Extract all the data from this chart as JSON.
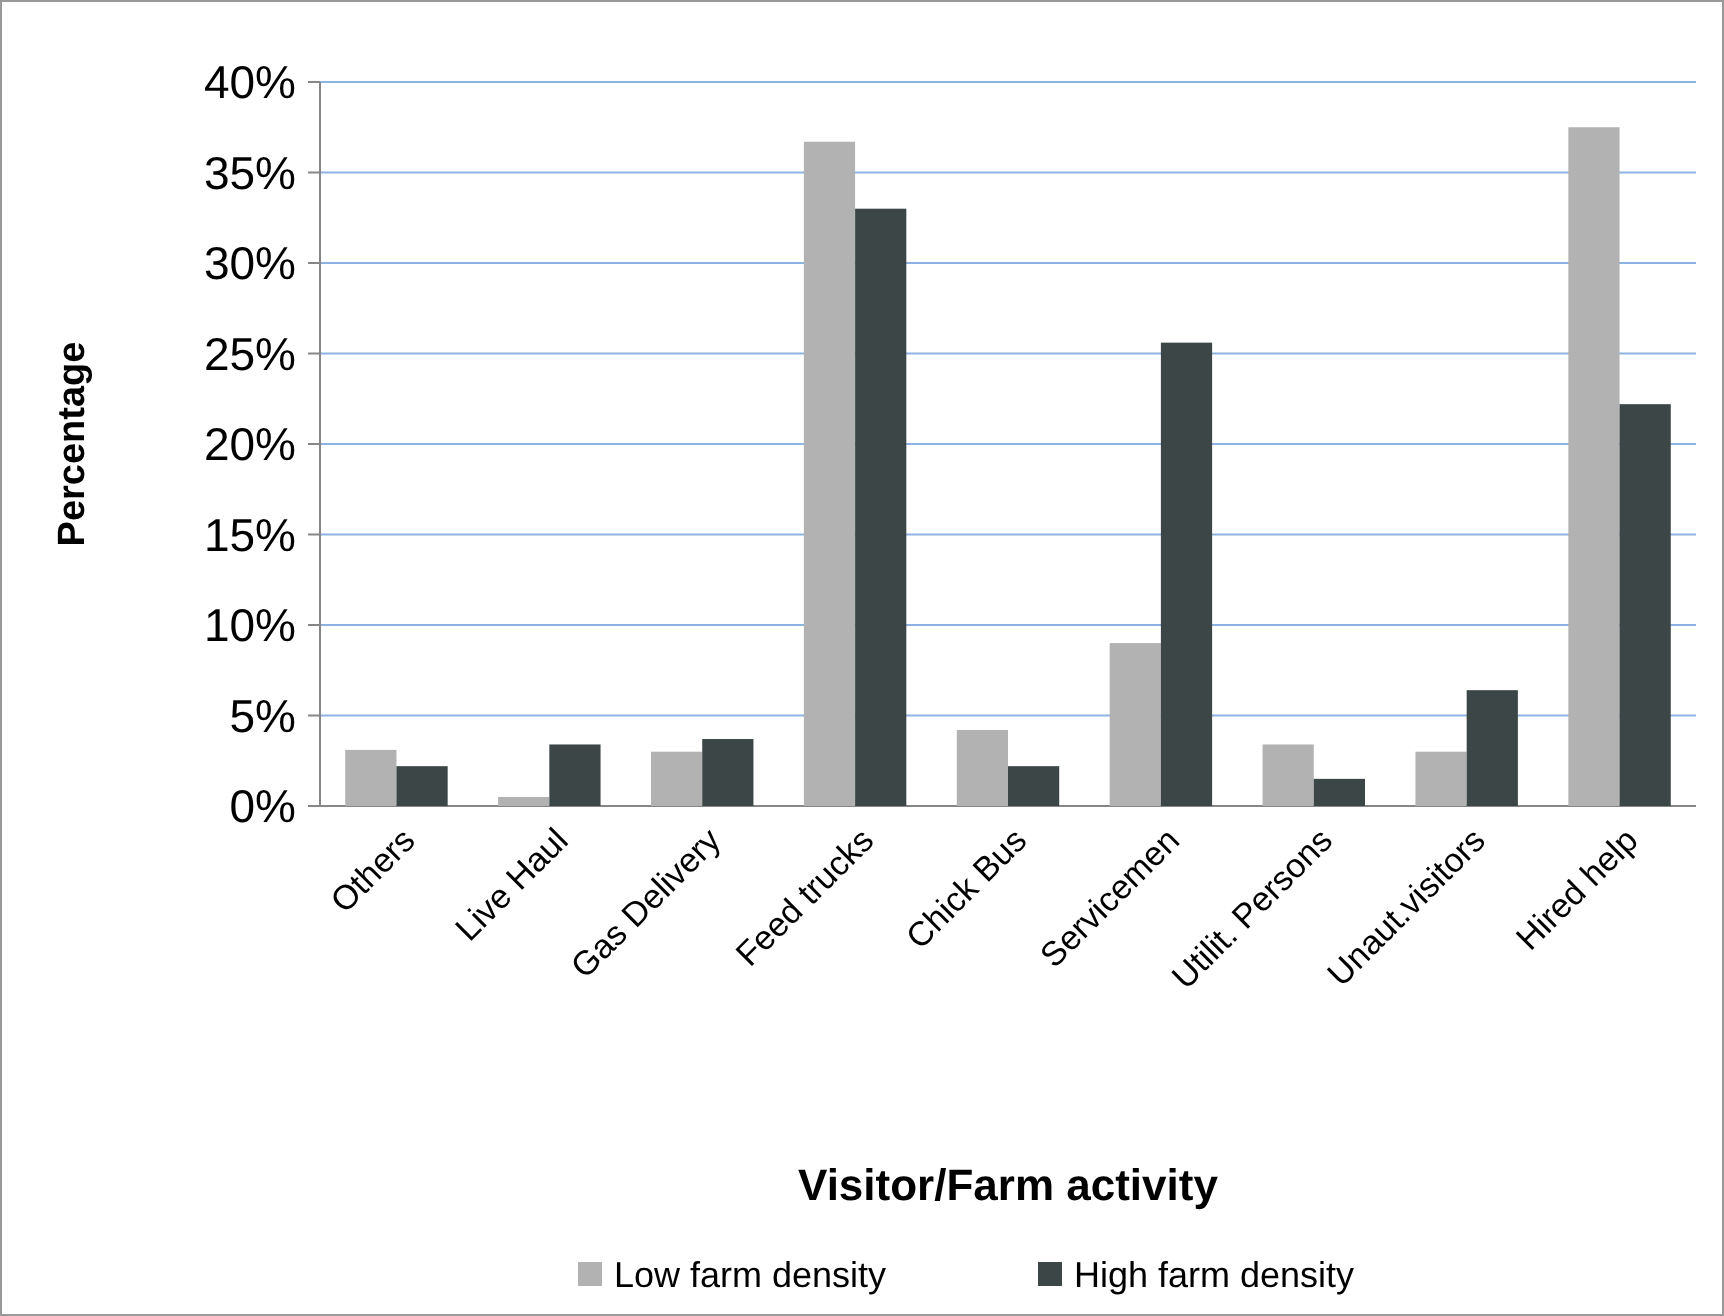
{
  "chart_data": {
    "type": "bar",
    "xlabel": "Visitor/Farm activity",
    "ylabel": "Percentage",
    "categories": [
      "Others",
      "Live Haul",
      "Gas Delivery",
      "Feed trucks",
      "Chick Bus",
      "Servicemen",
      "Utilit. Persons",
      "Unaut.visitors",
      "Hired help"
    ],
    "series": [
      {
        "name": "Low farm density",
        "color": "#b2b2b2",
        "values": [
          3.1,
          0.5,
          3.0,
          36.7,
          4.2,
          9.0,
          3.4,
          3.0,
          37.5
        ]
      },
      {
        "name": "High farm density",
        "color": "#3d4646",
        "values": [
          2.2,
          3.4,
          3.7,
          33.0,
          2.2,
          25.6,
          1.5,
          6.4,
          22.2
        ]
      }
    ],
    "ylim": [
      0,
      40
    ],
    "yticks": [
      {
        "value": 0,
        "label": "0%"
      },
      {
        "value": 5,
        "label": "5%"
      },
      {
        "value": 10,
        "label": "10%"
      },
      {
        "value": 15,
        "label": "15%"
      },
      {
        "value": 20,
        "label": "20%"
      },
      {
        "value": 25,
        "label": "25%"
      },
      {
        "value": 30,
        "label": "30%"
      },
      {
        "value": 35,
        "label": "35%"
      },
      {
        "value": 40,
        "label": "40%"
      }
    ],
    "grid": "y",
    "legend": "bottom"
  }
}
